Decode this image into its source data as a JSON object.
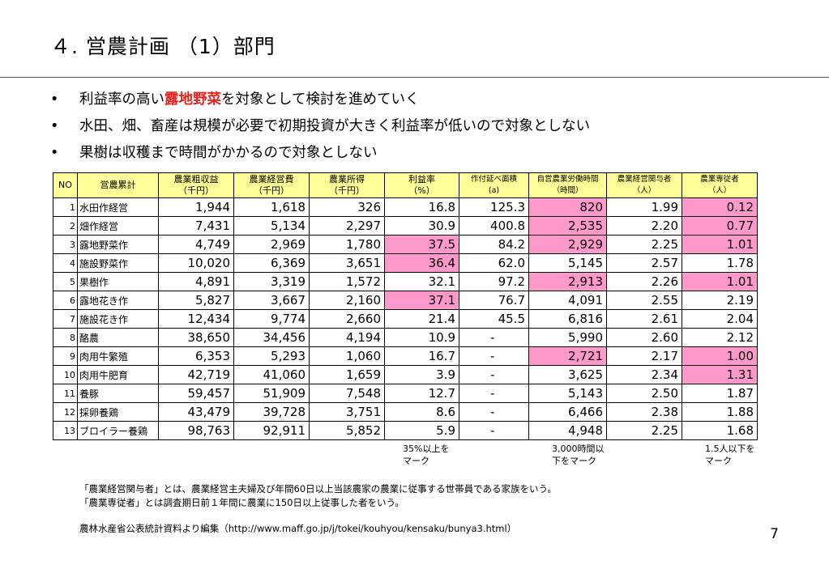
{
  "slide": {
    "title": "４. 営農計画 （1）部門",
    "page_number": "7"
  },
  "bullets": [
    {
      "mark": "•",
      "before": "利益率の高い",
      "highlight": "露地野菜",
      "after": "を対象として検討を進めていく"
    },
    {
      "mark": "•",
      "before": "水田、畑、畜産は規模が必要で初期投資が大きく利益率が低いので対象としない",
      "highlight": "",
      "after": ""
    },
    {
      "mark": "•",
      "before": "果樹は収穫まで時間がかかるので対象としない",
      "highlight": "",
      "after": ""
    }
  ],
  "colors": {
    "header_fill": "#ffff99",
    "highlight_fill": "#ff99cc",
    "highlight_text": "#e8211d"
  },
  "table": {
    "headers": [
      {
        "line1": "NO",
        "line2": ""
      },
      {
        "line1": "営農累計",
        "line2": ""
      },
      {
        "line1": "農業粗収益",
        "line2": "（千円）"
      },
      {
        "line1": "農業経営費",
        "line2": "（千円）"
      },
      {
        "line1": "農業所得",
        "line2": "（千円）"
      },
      {
        "line1": "利益率",
        "line2": "（%）"
      },
      {
        "line1": "作付延べ面積",
        "line2": "(a)"
      },
      {
        "line1": "自営農業労働時間",
        "line2": "（時間）"
      },
      {
        "line1": "農業経営関与者",
        "line2": "（人）"
      },
      {
        "line1": "農業専従者",
        "line2": "（人）"
      }
    ],
    "rows": [
      {
        "no": "1",
        "name": "水田作経営",
        "revenue": "1,944",
        "cost": "1,618",
        "income": "326",
        "margin": "16.8",
        "area": "125.3",
        "hours": "820",
        "participants": "1.99",
        "fulltime": "0.12"
      },
      {
        "no": "2",
        "name": "畑作経営",
        "revenue": "7,431",
        "cost": "5,134",
        "income": "2,297",
        "margin": "30.9",
        "area": "400.8",
        "hours": "2,535",
        "participants": "2.20",
        "fulltime": "0.77"
      },
      {
        "no": "3",
        "name": "露地野菜作",
        "revenue": "4,749",
        "cost": "2,969",
        "income": "1,780",
        "margin": "37.5",
        "area": "84.2",
        "hours": "2,929",
        "participants": "2.25",
        "fulltime": "1.01"
      },
      {
        "no": "4",
        "name": "施設野菜作",
        "revenue": "10,020",
        "cost": "6,369",
        "income": "3,651",
        "margin": "36.4",
        "area": "62.0",
        "hours": "5,145",
        "participants": "2.57",
        "fulltime": "1.78"
      },
      {
        "no": "5",
        "name": "果樹作",
        "revenue": "4,891",
        "cost": "3,319",
        "income": "1,572",
        "margin": "32.1",
        "area": "97.2",
        "hours": "2,913",
        "participants": "2.26",
        "fulltime": "1.01"
      },
      {
        "no": "6",
        "name": "露地花き作",
        "revenue": "5,827",
        "cost": "3,667",
        "income": "2,160",
        "margin": "37.1",
        "area": "76.7",
        "hours": "4,091",
        "participants": "2.55",
        "fulltime": "2.19"
      },
      {
        "no": "7",
        "name": "施設花き作",
        "revenue": "12,434",
        "cost": "9,774",
        "income": "2,660",
        "margin": "21.4",
        "area": "45.5",
        "hours": "6,816",
        "participants": "2.61",
        "fulltime": "2.04"
      },
      {
        "no": "8",
        "name": "酪農",
        "revenue": "38,650",
        "cost": "34,456",
        "income": "4,194",
        "margin": "10.9",
        "area": "-",
        "hours": "5,990",
        "participants": "2.60",
        "fulltime": "2.12"
      },
      {
        "no": "9",
        "name": "肉用牛繁殖",
        "revenue": "6,353",
        "cost": "5,293",
        "income": "1,060",
        "margin": "16.7",
        "area": "-",
        "hours": "2,721",
        "participants": "2.17",
        "fulltime": "1.00"
      },
      {
        "no": "10",
        "name": "肉用牛肥育",
        "revenue": "42,719",
        "cost": "41,060",
        "income": "1,659",
        "margin": "3.9",
        "area": "-",
        "hours": "3,625",
        "participants": "2.34",
        "fulltime": "1.31"
      },
      {
        "no": "11",
        "name": "養豚",
        "revenue": "59,457",
        "cost": "51,909",
        "income": "7,548",
        "margin": "12.7",
        "area": "-",
        "hours": "5,143",
        "participants": "2.50",
        "fulltime": "1.87"
      },
      {
        "no": "12",
        "name": "採卵養鶏",
        "revenue": "43,479",
        "cost": "39,728",
        "income": "3,751",
        "margin": "8.6",
        "area": "-",
        "hours": "6,466",
        "participants": "2.38",
        "fulltime": "1.88"
      },
      {
        "no": "13",
        "name": "ブロイラー養鶏",
        "revenue": "98,763",
        "cost": "92,911",
        "income": "5,852",
        "margin": "5.9",
        "area": "-",
        "hours": "4,948",
        "participants": "2.25",
        "fulltime": "1.68"
      }
    ],
    "highlighted": {
      "margin": [
        "3",
        "4",
        "6"
      ],
      "hours": [
        "1",
        "2",
        "3",
        "5",
        "9"
      ],
      "fulltime": [
        "1",
        "2",
        "3",
        "5",
        "9",
        "10"
      ]
    }
  },
  "notes": {
    "margin": "35%以上を\nマーク",
    "hours": "3,000時間以\n下をマーク",
    "fulltime": "1.5人以下を\nマーク"
  },
  "footnotes": {
    "def1": "「農業経営関与者」とは、農業経営主夫婦及び年間60日以上当該農家の農業に従事する世帯員である家族をいう。",
    "def2": "「農業専従者」とは調査期日前１年間に農業に150日以上従事した者をいう。",
    "source": "農林水産省公表統計資料より編集（http://www.maff.go.jp/j/tokei/kouhyou/kensaku/bunya3.html）"
  }
}
